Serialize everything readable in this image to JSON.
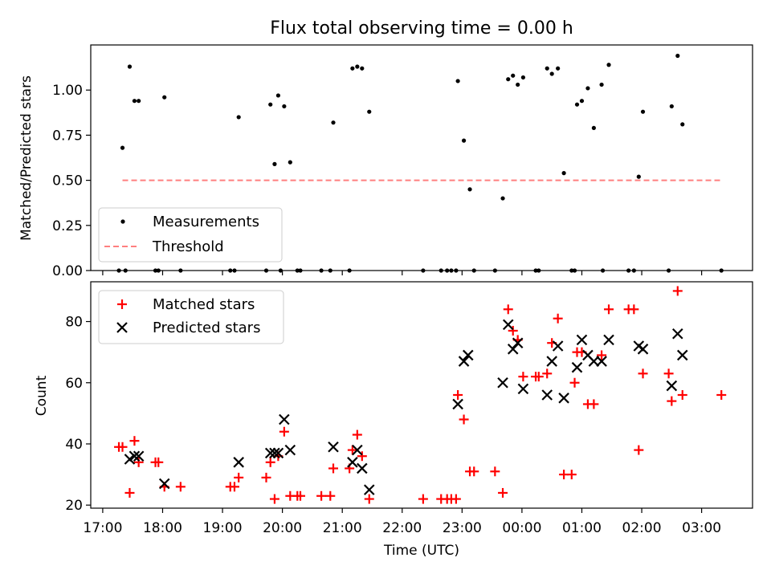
{
  "chart_data": [
    {
      "type": "scatter",
      "title": "Flux total observing time = 0.00 h",
      "xlabel": "",
      "ylabel": "Matched/Predicted stars",
      "xlim": [
        16.8,
        27.85
      ],
      "ylim": [
        0.0,
        1.25
      ],
      "yticks": [
        0.0,
        0.25,
        0.5,
        0.75,
        1.0
      ],
      "ytick_labels": [
        "0.00",
        "0.25",
        "0.50",
        "0.75",
        "1.00"
      ],
      "legend": {
        "position": "lower-left",
        "entries": [
          "Measurements",
          "Threshold"
        ]
      },
      "colors": {
        "measurements": "#000000",
        "threshold": "#ff7f7f"
      },
      "threshold": {
        "value": 0.5,
        "x_range": [
          17.33,
          27.33
        ]
      },
      "series": [
        {
          "name": "Measurements",
          "x": [
            17.33,
            17.45,
            17.53,
            17.6,
            18.03,
            19.27,
            19.8,
            19.87,
            19.93,
            20.03,
            20.13,
            20.85,
            21.17,
            21.25,
            21.33,
            21.45,
            22.93,
            23.03,
            23.13,
            23.68,
            23.77,
            23.85,
            23.93,
            24.02,
            24.42,
            24.5,
            24.6,
            24.7,
            24.92,
            25.0,
            25.1,
            25.2,
            25.33,
            25.45,
            25.95,
            26.02,
            26.5,
            26.6,
            26.68,
            17.27,
            17.38,
            17.88,
            17.93,
            18.3,
            19.13,
            19.2,
            19.73,
            19.97,
            20.25,
            20.3,
            20.65,
            20.8,
            21.12,
            22.35,
            22.65,
            22.75,
            22.82,
            22.9,
            23.2,
            23.55,
            24.23,
            24.28,
            24.83,
            24.88,
            25.35,
            25.78,
            25.87,
            26.45,
            27.33
          ],
          "y": [
            0.68,
            1.13,
            0.94,
            0.94,
            0.96,
            0.85,
            0.92,
            0.59,
            0.97,
            0.91,
            0.6,
            0.82,
            1.12,
            1.13,
            1.12,
            0.88,
            1.05,
            0.72,
            0.45,
            0.4,
            1.06,
            1.08,
            1.03,
            1.07,
            1.12,
            1.09,
            1.12,
            0.54,
            0.92,
            0.94,
            1.01,
            0.79,
            1.03,
            1.14,
            0.52,
            0.88,
            0.91,
            1.19,
            0.81,
            0,
            0,
            0,
            0,
            0,
            0,
            0,
            0,
            0,
            0,
            0,
            0,
            0,
            0,
            0,
            0,
            0,
            0,
            0,
            0,
            0,
            0,
            0,
            0,
            0,
            0,
            0,
            0,
            0,
            0
          ]
        }
      ]
    },
    {
      "type": "scatter",
      "title": "",
      "xlabel": "Time (UTC)",
      "ylabel": "Count",
      "xlim": [
        16.8,
        27.85
      ],
      "ylim": [
        19,
        93
      ],
      "yticks": [
        20,
        40,
        60,
        80
      ],
      "ytick_labels": [
        "20",
        "40",
        "60",
        "80"
      ],
      "xticks": [
        17,
        18,
        19,
        20,
        21,
        22,
        23,
        24,
        25,
        26,
        27
      ],
      "xtick_labels": [
        "17:00",
        "18:00",
        "19:00",
        "20:00",
        "21:00",
        "22:00",
        "23:00",
        "00:00",
        "01:00",
        "02:00",
        "03:00"
      ],
      "legend": {
        "position": "top-left",
        "entries": [
          "Matched stars",
          "Predicted stars"
        ]
      },
      "colors": {
        "matched": "#ff0000",
        "predicted": "#000000"
      },
      "series": [
        {
          "name": "Matched stars",
          "x": [
            17.27,
            17.33,
            17.45,
            17.53,
            17.6,
            17.88,
            17.93,
            18.03,
            18.3,
            19.13,
            19.2,
            19.27,
            19.73,
            19.8,
            19.87,
            19.93,
            20.03,
            20.13,
            20.25,
            20.3,
            20.65,
            20.8,
            20.85,
            21.12,
            21.17,
            21.25,
            21.33,
            21.45,
            22.35,
            22.65,
            22.75,
            22.82,
            22.9,
            22.93,
            23.03,
            23.13,
            23.2,
            23.55,
            23.68,
            23.77,
            23.85,
            23.93,
            24.02,
            24.23,
            24.28,
            24.42,
            24.5,
            24.6,
            24.7,
            24.83,
            24.88,
            24.92,
            25.0,
            25.1,
            25.2,
            25.33,
            25.45,
            25.78,
            25.87,
            25.95,
            26.02,
            26.45,
            26.5,
            26.6,
            26.68,
            27.33
          ],
          "y": [
            39,
            39,
            24,
            41,
            34,
            34,
            34,
            26,
            26,
            26,
            26,
            29,
            29,
            34,
            22,
            36,
            44,
            23,
            23,
            23,
            23,
            23,
            32,
            32,
            38,
            43,
            36,
            22,
            22,
            22,
            22,
            22,
            22,
            56,
            48,
            31,
            31,
            31,
            24,
            84,
            77,
            74,
            62,
            62,
            62,
            63,
            73,
            81,
            30,
            30,
            60,
            70,
            70,
            53,
            53,
            69,
            84,
            84,
            84,
            38,
            63,
            63,
            54,
            90,
            56,
            56
          ]
        },
        {
          "name": "Predicted stars",
          "x": [
            17.45,
            17.53,
            17.6,
            18.03,
            19.27,
            19.8,
            19.87,
            19.93,
            20.03,
            20.13,
            20.85,
            21.17,
            21.25,
            21.33,
            21.45,
            22.93,
            23.03,
            23.1,
            23.68,
            23.77,
            23.85,
            23.93,
            24.02,
            24.42,
            24.5,
            24.6,
            24.7,
            24.92,
            25.0,
            25.1,
            25.2,
            25.33,
            25.45,
            25.95,
            26.02,
            26.5,
            26.6,
            26.68
          ],
          "y": [
            35,
            36,
            36,
            27,
            34,
            37,
            37,
            37,
            48,
            38,
            39,
            34,
            38,
            32,
            25,
            53,
            67,
            69,
            60,
            79,
            71,
            73,
            58,
            56,
            67,
            72,
            55,
            65,
            74,
            69,
            67,
            67,
            74,
            72,
            71,
            59,
            76,
            69
          ]
        }
      ]
    }
  ]
}
